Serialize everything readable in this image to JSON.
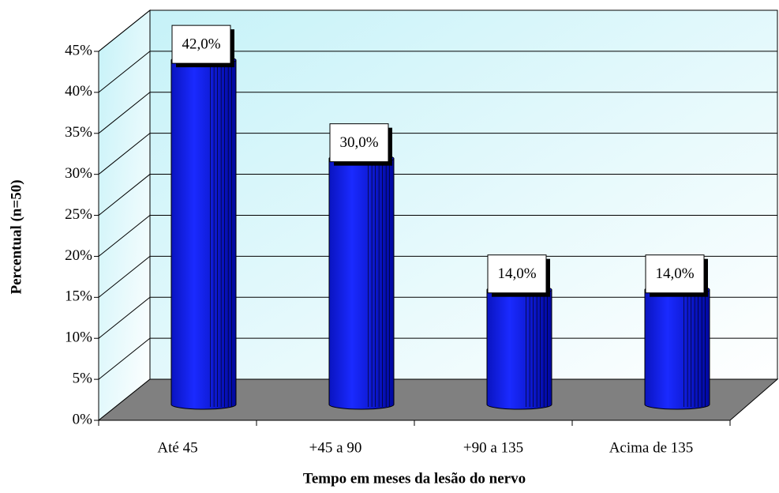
{
  "chart_data": {
    "type": "bar3d",
    "x_label": "Tempo em meses da lesão do nervo",
    "y_label": "Percentual (n=50)",
    "categories": [
      "Até 45",
      "+45 a 90",
      "+90 a 135",
      "Acima de 135"
    ],
    "values": [
      42,
      30,
      14,
      14
    ],
    "value_labels": [
      "42,0%",
      "30,0%",
      "14,0%",
      "14,0%"
    ],
    "color": "#0a14e6",
    "ylim": [
      0,
      45
    ],
    "yticks": [
      {
        "value": 0,
        "label": "0%"
      },
      {
        "value": 5,
        "label": "5%"
      },
      {
        "value": 10,
        "label": "10%"
      },
      {
        "value": 15,
        "label": "15%"
      },
      {
        "value": 20,
        "label": "20%"
      },
      {
        "value": 25,
        "label": "25%"
      },
      {
        "value": 30,
        "label": "30%"
      },
      {
        "value": 35,
        "label": "35%"
      },
      {
        "value": 40,
        "label": "40%"
      },
      {
        "value": 45,
        "label": "45%"
      }
    ],
    "grid": true
  }
}
